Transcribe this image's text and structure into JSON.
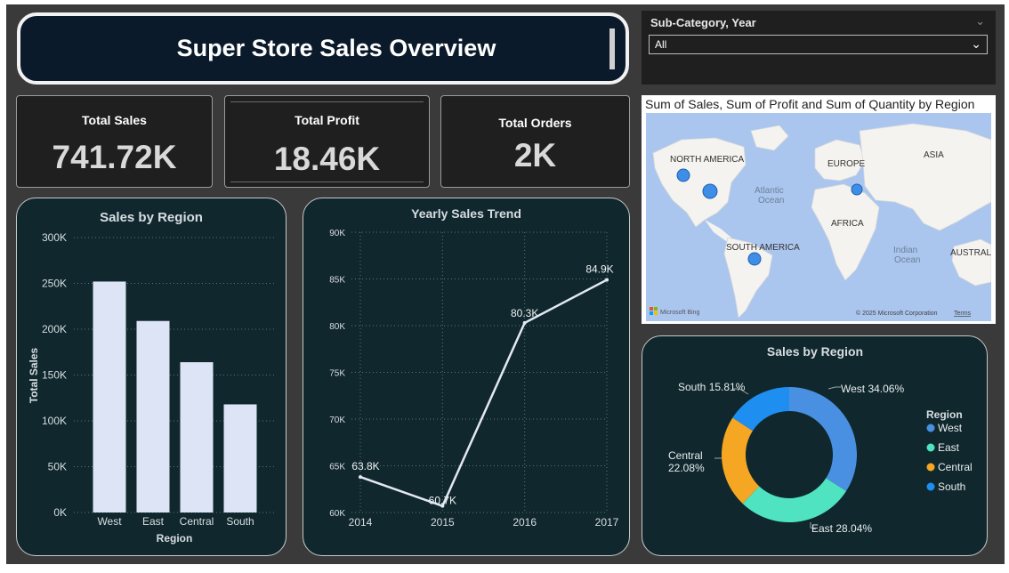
{
  "header": {
    "title": "Super Store Sales Overview"
  },
  "slicer": {
    "label": "Sub-Category, Year",
    "selected": "All"
  },
  "kpis": {
    "sales_label": "Total Sales",
    "sales_value": "741.72K",
    "profit_label": "Total Profit",
    "profit_value": "18.46K",
    "orders_label": "Total Orders",
    "orders_value": "2K"
  },
  "map": {
    "title": "Sum of Sales, Sum of Profit and Sum of Quantity by Region",
    "labels": [
      "NORTH AMERICA",
      "EUROPE",
      "ASIA",
      "Atlantic",
      "Ocean",
      "AFRICA",
      "SOUTH AMERICA",
      "Indian",
      "Ocean",
      "AUSTRALI"
    ],
    "bing": "Microsoft Bing",
    "copyright": "© 2025 Microsoft Corporation",
    "terms": "Terms"
  },
  "colors": {
    "bar": "#dce4f5",
    "panel": "#10282d",
    "west": "#4a90e2",
    "east": "#4fe3c1",
    "central": "#f5a623",
    "south": "#1f8ef1"
  },
  "chart_data": [
    {
      "type": "bar",
      "title": "Sales by Region",
      "categories": [
        "West",
        "East",
        "Central",
        "South"
      ],
      "values": [
        252000,
        209000,
        164000,
        118000
      ],
      "xlabel": "Region",
      "ylabel": "Total Sales",
      "ylim": [
        0,
        300000
      ],
      "yticks": [
        "0K",
        "50K",
        "100K",
        "150K",
        "200K",
        "250K",
        "300K"
      ]
    },
    {
      "type": "line",
      "title": "Yearly Sales Trend",
      "x": [
        "2014",
        "2015",
        "2016",
        "2017"
      ],
      "values": [
        63800,
        60700,
        80300,
        84900
      ],
      "labels": [
        "63.8K",
        "60.7K",
        "80.3K",
        "84.9K"
      ],
      "ylim": [
        60000,
        90000
      ],
      "yticks": [
        "60K",
        "65K",
        "70K",
        "75K",
        "80K",
        "85K",
        "90K"
      ]
    },
    {
      "type": "pie",
      "title": "Sales by Region",
      "legend_title": "Region",
      "categories": [
        "West",
        "East",
        "Central",
        "South"
      ],
      "values": [
        34.06,
        28.04,
        22.08,
        15.81
      ],
      "labels": [
        "West 34.06%",
        "East 28.04%",
        "Central",
        "22.08%",
        "South 15.81%"
      ]
    }
  ]
}
